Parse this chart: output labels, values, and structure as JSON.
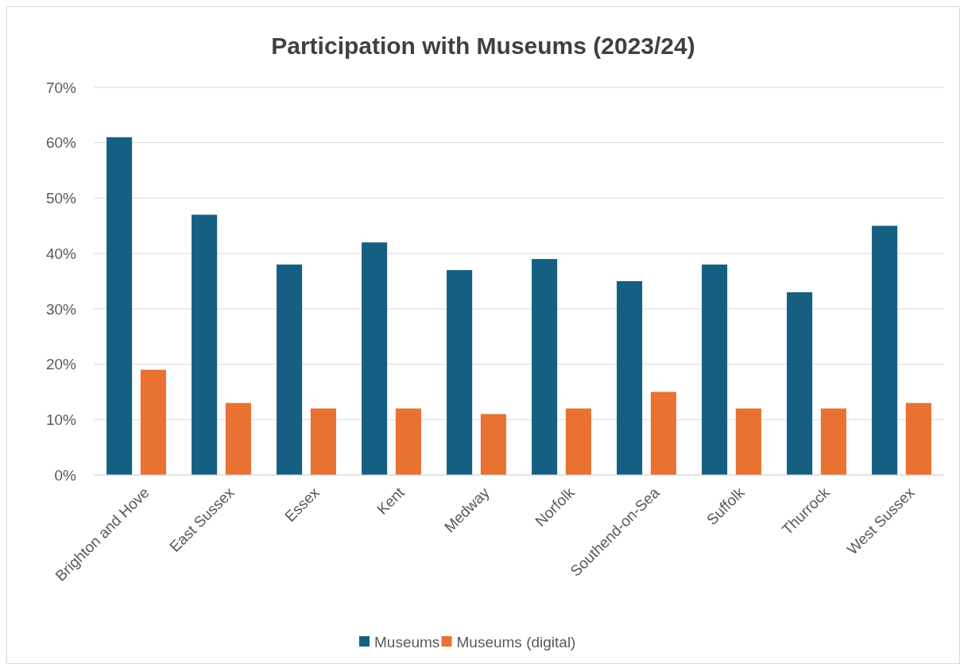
{
  "chart_data": {
    "type": "bar",
    "title": "Participation with Museums (2023/24)",
    "categories": [
      "Brighton and Hove",
      "East Sussex",
      "Essex",
      "Kent",
      "Medway",
      "Norfolk",
      "Southend-on-Sea",
      "Suffolk",
      "Thurrock",
      "West Sussex"
    ],
    "series": [
      {
        "name": "Museums",
        "color": "#156082",
        "values": [
          61,
          47,
          38,
          42,
          37,
          39,
          35,
          38,
          33,
          45
        ]
      },
      {
        "name": "Museums (digital)",
        "color": "#e97132",
        "values": [
          19,
          13,
          12,
          12,
          11,
          12,
          15,
          12,
          12,
          13
        ]
      }
    ],
    "ylim": [
      0,
      70
    ],
    "yticks": [
      {
        "value": 0,
        "label": "0%"
      },
      {
        "value": 10,
        "label": "10%"
      },
      {
        "value": 20,
        "label": "20%"
      },
      {
        "value": 30,
        "label": "30%"
      },
      {
        "value": 40,
        "label": "40%"
      },
      {
        "value": 50,
        "label": "50%"
      },
      {
        "value": 60,
        "label": "60%"
      },
      {
        "value": 70,
        "label": "70%"
      }
    ],
    "grid": "y",
    "legend": "bottom"
  }
}
